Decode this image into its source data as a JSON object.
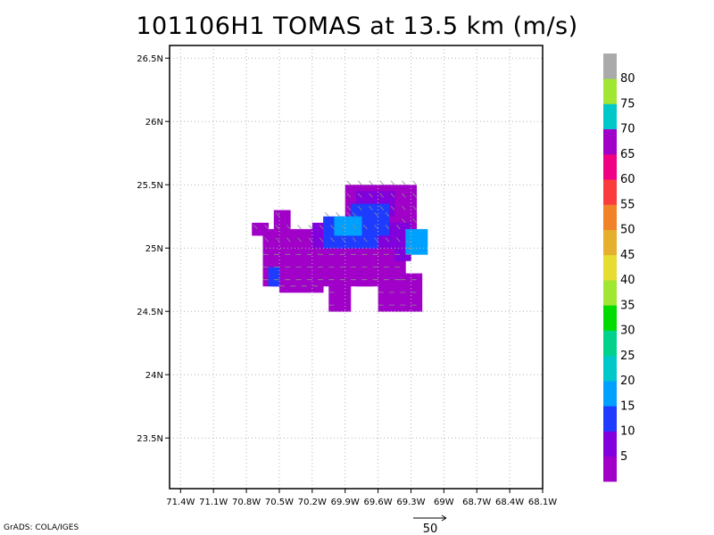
{
  "title": "101106H1 TOMAS at 13.5 km (m/s)",
  "credit": "GrADS: COLA/IGES",
  "chart_data": {
    "type": "heatmap",
    "title": "101106H1 TOMAS at 13.5 km (m/s)",
    "xlim": [
      -71.5,
      -68.1
    ],
    "ylim": [
      23.1,
      26.6
    ],
    "grid": true,
    "x_ticks": [
      {
        "v": -71.4,
        "label": "71.4W"
      },
      {
        "v": -71.1,
        "label": "71.1W"
      },
      {
        "v": -70.8,
        "label": "70.8W"
      },
      {
        "v": -70.5,
        "label": "70.5W"
      },
      {
        "v": -70.2,
        "label": "70.2W"
      },
      {
        "v": -69.9,
        "label": "69.9W"
      },
      {
        "v": -69.6,
        "label": "69.6W"
      },
      {
        "v": -69.3,
        "label": "69.3W"
      },
      {
        "v": -69.0,
        "label": "69W"
      },
      {
        "v": -68.7,
        "label": "68.7W"
      },
      {
        "v": -68.4,
        "label": "68.4W"
      },
      {
        "v": -68.1,
        "label": "68.1W"
      }
    ],
    "y_ticks": [
      {
        "v": 26.5,
        "label": "26.5N"
      },
      {
        "v": 26.0,
        "label": "26N"
      },
      {
        "v": 25.5,
        "label": "25.5N"
      },
      {
        "v": 25.0,
        "label": "25N"
      },
      {
        "v": 24.5,
        "label": "24.5N"
      },
      {
        "v": 24.0,
        "label": "24N"
      },
      {
        "v": 23.5,
        "label": "23.5N"
      }
    ],
    "colorbar": {
      "labels": [
        "5",
        "10",
        "15",
        "20",
        "25",
        "30",
        "35",
        "40",
        "45",
        "50",
        "55",
        "60",
        "65",
        "70",
        "75",
        "80"
      ],
      "colors": [
        "#a000c8",
        "#8200dc",
        "#1e3cff",
        "#00a0ff",
        "#00c8c8",
        "#00d28c",
        "#00dc00",
        "#a0e632",
        "#e6dc32",
        "#e6af2d",
        "#f08228",
        "#fa3c3c",
        "#f00082",
        "#a000c8",
        "#00c8c8",
        "#a0e632",
        "#aaaaaa"
      ]
    },
    "cell_size_deg": 0.05,
    "regions": [
      {
        "name": "purple-main-left",
        "lon": [
          -70.65,
          -69.35
        ],
        "lat": [
          24.7,
          25.15
        ],
        "color": "#a000c8"
      },
      {
        "name": "purple-left-arm",
        "lon": [
          -70.55,
          -70.4
        ],
        "lat": [
          24.7,
          25.3
        ],
        "color": "#a000c8"
      },
      {
        "name": "purple-left-dot",
        "lon": [
          -70.75,
          -70.6
        ],
        "lat": [
          25.1,
          25.2
        ],
        "color": "#a000c8"
      },
      {
        "name": "purple-bottom-1",
        "lon": [
          -70.5,
          -70.1
        ],
        "lat": [
          24.65,
          24.85
        ],
        "color": "#a000c8"
      },
      {
        "name": "purple-bottom-2",
        "lon": [
          -70.05,
          -69.85
        ],
        "lat": [
          24.5,
          24.8
        ],
        "color": "#a000c8"
      },
      {
        "name": "purple-bottom-3",
        "lon": [
          -69.8,
          -69.65
        ],
        "lat": [
          24.7,
          24.9
        ],
        "color": "#a000c8"
      },
      {
        "name": "purple-bottom-right",
        "lon": [
          -69.6,
          -69.2
        ],
        "lat": [
          24.5,
          24.8
        ],
        "color": "#a000c8"
      },
      {
        "name": "purple-top-right",
        "lon": [
          -69.9,
          -69.25
        ],
        "lat": [
          25.15,
          25.5
        ],
        "color": "#a000c8"
      },
      {
        "name": "violet-band",
        "lon": [
          -70.2,
          -69.4
        ],
        "lat": [
          25.0,
          25.2
        ],
        "color": "#8200dc"
      },
      {
        "name": "violet-right",
        "lon": [
          -69.45,
          -69.3
        ],
        "lat": [
          24.9,
          25.2
        ],
        "color": "#8200dc"
      },
      {
        "name": "violet-top",
        "lon": [
          -69.8,
          -69.45
        ],
        "lat": [
          25.25,
          25.45
        ],
        "color": "#8200dc"
      },
      {
        "name": "blue-left-edge",
        "lon": [
          -70.6,
          -70.5
        ],
        "lat": [
          24.7,
          24.85
        ],
        "color": "#1e3cff"
      },
      {
        "name": "blue-top-mid",
        "lon": [
          -69.85,
          -69.5
        ],
        "lat": [
          25.1,
          25.35
        ],
        "color": "#1e3cff"
      },
      {
        "name": "blue-core",
        "lon": [
          -70.1,
          -69.6
        ],
        "lat": [
          25.0,
          25.25
        ],
        "color": "#1e3cff"
      },
      {
        "name": "cyan-core",
        "lon": [
          -70.0,
          -69.75
        ],
        "lat": [
          25.1,
          25.25
        ],
        "color": "#00a0ff"
      },
      {
        "name": "cyan-right",
        "lon": [
          -69.35,
          -69.15
        ],
        "lat": [
          24.95,
          25.15
        ],
        "color": "#00a0ff"
      }
    ],
    "vector_reference": {
      "label": "50"
    }
  }
}
